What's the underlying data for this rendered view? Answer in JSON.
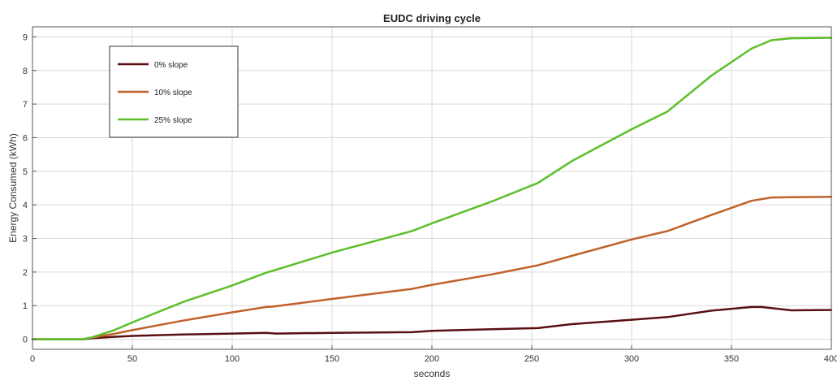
{
  "chart_data": {
    "type": "line",
    "title": "EUDC driving cycle",
    "xlabel": "seconds",
    "ylabel": "Energy Consumed (kWh)",
    "xlim": [
      0,
      400
    ],
    "ylim": [
      -0.3,
      9.3
    ],
    "xticks": [
      0,
      50,
      100,
      150,
      200,
      250,
      300,
      350,
      400
    ],
    "yticks": [
      0,
      1,
      2,
      3,
      4,
      5,
      6,
      7,
      8,
      9
    ],
    "grid": true,
    "legend_position": "top-left",
    "series": [
      {
        "name": "0% slope",
        "color": "#5a0f12",
        "points": [
          [
            0,
            0
          ],
          [
            25,
            0
          ],
          [
            30,
            0.03
          ],
          [
            40,
            0.07
          ],
          [
            50,
            0.1
          ],
          [
            75,
            0.14
          ],
          [
            100,
            0.17
          ],
          [
            117,
            0.19
          ],
          [
            122,
            0.17
          ],
          [
            150,
            0.19
          ],
          [
            190,
            0.21
          ],
          [
            200,
            0.25
          ],
          [
            230,
            0.3
          ],
          [
            253,
            0.33
          ],
          [
            270,
            0.45
          ],
          [
            300,
            0.58
          ],
          [
            318,
            0.66
          ],
          [
            340,
            0.85
          ],
          [
            360,
            0.96
          ],
          [
            365,
            0.96
          ],
          [
            380,
            0.86
          ],
          [
            400,
            0.87
          ]
        ]
      },
      {
        "name": "10% slope",
        "color": "#c0622b",
        "points": [
          [
            0,
            0
          ],
          [
            25,
            0
          ],
          [
            30,
            0.05
          ],
          [
            40,
            0.15
          ],
          [
            50,
            0.27
          ],
          [
            75,
            0.55
          ],
          [
            100,
            0.8
          ],
          [
            117,
            0.96
          ],
          [
            120,
            0.97
          ],
          [
            150,
            1.2
          ],
          [
            190,
            1.5
          ],
          [
            200,
            1.62
          ],
          [
            230,
            1.93
          ],
          [
            253,
            2.2
          ],
          [
            270,
            2.48
          ],
          [
            300,
            2.97
          ],
          [
            318,
            3.22
          ],
          [
            340,
            3.7
          ],
          [
            360,
            4.12
          ],
          [
            370,
            4.22
          ],
          [
            380,
            4.23
          ],
          [
            400,
            4.24
          ]
        ]
      },
      {
        "name": "25% slope",
        "color": "#5cbf2a",
        "points": [
          [
            0,
            0
          ],
          [
            25,
            0
          ],
          [
            30,
            0.06
          ],
          [
            40,
            0.25
          ],
          [
            50,
            0.5
          ],
          [
            75,
            1.1
          ],
          [
            100,
            1.6
          ],
          [
            117,
            1.98
          ],
          [
            120,
            2.03
          ],
          [
            150,
            2.58
          ],
          [
            190,
            3.22
          ],
          [
            200,
            3.45
          ],
          [
            230,
            4.1
          ],
          [
            253,
            4.65
          ],
          [
            270,
            5.3
          ],
          [
            300,
            6.25
          ],
          [
            318,
            6.78
          ],
          [
            340,
            7.85
          ],
          [
            360,
            8.65
          ],
          [
            370,
            8.9
          ],
          [
            380,
            8.96
          ],
          [
            400,
            8.97
          ]
        ]
      }
    ]
  }
}
